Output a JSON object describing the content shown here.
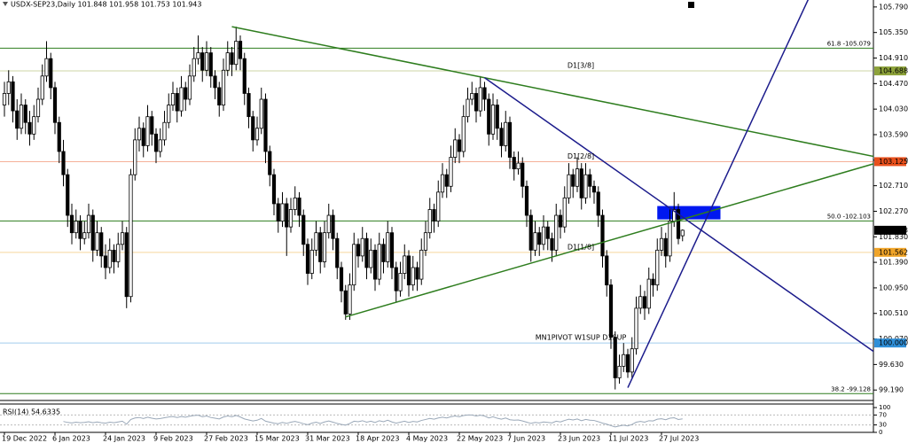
{
  "chart_data": {
    "type": "candlestick",
    "title": "USDX-SEP23,Daily  101.848 101.958 101.753 101.943",
    "categories": [
      "19 Dec 2022",
      null,
      null,
      null,
      null,
      null,
      null,
      null,
      null,
      null,
      null,
      null,
      "6 Jan 2023",
      null,
      null,
      null,
      null,
      null,
      null,
      null,
      null,
      null,
      null,
      null,
      "24 Jan 2023",
      null,
      null,
      null,
      null,
      null,
      null,
      null,
      null,
      null,
      null,
      null,
      "9 Feb 2023",
      null,
      null,
      null,
      null,
      null,
      null,
      null,
      null,
      null,
      null,
      null,
      "27 Feb 2023",
      null,
      null,
      null,
      null,
      null,
      null,
      null,
      null,
      null,
      null,
      null,
      "15 Mar 2023",
      null,
      null,
      null,
      null,
      null,
      null,
      null,
      null,
      null,
      null,
      null,
      "31 Mar 2023",
      null,
      null,
      null,
      null,
      null,
      null,
      null,
      null,
      null,
      null,
      null,
      "18 Apr 2023",
      null,
      null,
      null,
      null,
      null,
      null,
      null,
      null,
      null,
      null,
      null,
      "4 May 2023",
      null,
      null,
      null,
      null,
      null,
      null,
      null,
      null,
      null,
      null,
      null,
      "22 May 2023",
      null,
      null,
      null,
      null,
      null,
      null,
      null,
      null,
      null,
      null,
      null,
      "7 Jun 2023",
      null,
      null,
      null,
      null,
      null,
      null,
      null,
      null,
      null,
      null,
      null,
      "23 Jun 2023",
      null,
      null,
      null,
      null,
      null,
      null,
      null,
      null,
      null,
      null,
      null,
      "11 Jul 2023",
      null,
      null,
      null,
      null,
      null,
      null,
      null,
      null,
      null,
      null,
      null,
      "27 Jul 2023",
      null,
      null,
      null,
      null,
      null
    ],
    "ohlc": [
      [
        104.1,
        104.5,
        103.9,
        104.3
      ],
      [
        104.3,
        104.7,
        104.1,
        104.5
      ],
      [
        104.5,
        104.6,
        103.8,
        104.0
      ],
      [
        104.0,
        104.2,
        103.5,
        103.7
      ],
      [
        103.7,
        104.3,
        103.6,
        104.1
      ],
      [
        104.1,
        104.2,
        103.6,
        103.8
      ],
      [
        103.8,
        104.0,
        103.4,
        103.6
      ],
      [
        103.6,
        104.1,
        103.5,
        103.9
      ],
      [
        103.9,
        104.4,
        103.8,
        104.2
      ],
      [
        104.2,
        104.8,
        104.1,
        104.6
      ],
      [
        104.6,
        105.2,
        104.5,
        104.9
      ],
      [
        104.9,
        105.0,
        104.2,
        104.4
      ],
      [
        104.4,
        104.5,
        103.6,
        103.8
      ],
      [
        103.8,
        103.9,
        103.1,
        103.3
      ],
      [
        103.3,
        103.5,
        102.7,
        102.9
      ],
      [
        102.9,
        103.0,
        102.0,
        102.2
      ],
      [
        102.2,
        102.4,
        101.7,
        101.9
      ],
      [
        101.9,
        102.3,
        101.8,
        102.1
      ],
      [
        102.1,
        102.2,
        101.6,
        101.8
      ],
      [
        101.8,
        102.1,
        101.7,
        101.9
      ],
      [
        101.9,
        102.4,
        101.8,
        102.2
      ],
      [
        102.2,
        102.3,
        101.4,
        101.6
      ],
      [
        101.6,
        102.1,
        101.5,
        101.9
      ],
      [
        101.9,
        102.0,
        101.3,
        101.5
      ],
      [
        101.5,
        101.7,
        101.1,
        101.3
      ],
      [
        101.3,
        101.8,
        101.2,
        101.6
      ],
      [
        101.6,
        101.7,
        101.2,
        101.4
      ],
      [
        101.4,
        101.9,
        101.3,
        101.7
      ],
      [
        101.7,
        102.1,
        101.6,
        101.9
      ],
      [
        101.9,
        102.0,
        100.6,
        100.8
      ],
      [
        100.8,
        103.0,
        100.7,
        102.9
      ],
      [
        102.9,
        103.7,
        102.8,
        103.5
      ],
      [
        103.5,
        103.9,
        103.3,
        103.7
      ],
      [
        103.7,
        103.8,
        103.2,
        103.4
      ],
      [
        103.4,
        104.1,
        103.3,
        103.9
      ],
      [
        103.9,
        104.0,
        103.4,
        103.6
      ],
      [
        103.6,
        103.7,
        103.1,
        103.3
      ],
      [
        103.3,
        103.7,
        103.2,
        103.5
      ],
      [
        103.5,
        104.0,
        103.4,
        103.8
      ],
      [
        103.8,
        104.3,
        103.7,
        104.1
      ],
      [
        104.1,
        104.5,
        104.0,
        104.3
      ],
      [
        104.3,
        104.4,
        103.8,
        104.0
      ],
      [
        104.0,
        104.6,
        103.9,
        104.4
      ],
      [
        104.4,
        104.5,
        104.0,
        104.2
      ],
      [
        104.2,
        104.8,
        104.1,
        104.6
      ],
      [
        104.6,
        105.1,
        104.5,
        104.9
      ],
      [
        104.9,
        105.3,
        104.8,
        105.0
      ],
      [
        105.0,
        105.1,
        104.5,
        104.7
      ],
      [
        104.7,
        105.2,
        104.6,
        105.0
      ],
      [
        105.0,
        105.1,
        104.4,
        104.6
      ],
      [
        104.6,
        104.7,
        104.2,
        104.4
      ],
      [
        104.4,
        104.5,
        103.9,
        104.1
      ],
      [
        104.1,
        104.9,
        104.0,
        104.7
      ],
      [
        104.7,
        105.2,
        104.6,
        105.0
      ],
      [
        105.0,
        105.1,
        104.6,
        104.8
      ],
      [
        104.8,
        105.45,
        104.7,
        105.2
      ],
      [
        105.2,
        105.3,
        104.7,
        104.9
      ],
      [
        104.9,
        105.0,
        104.1,
        104.3
      ],
      [
        104.3,
        104.4,
        103.7,
        103.9
      ],
      [
        103.9,
        104.0,
        103.3,
        103.5
      ],
      [
        103.5,
        103.9,
        103.4,
        103.7
      ],
      [
        103.7,
        104.4,
        103.6,
        104.2
      ],
      [
        104.2,
        104.3,
        103.1,
        103.3
      ],
      [
        103.3,
        103.4,
        102.7,
        102.9
      ],
      [
        102.9,
        103.0,
        102.2,
        102.4
      ],
      [
        102.4,
        102.5,
        101.9,
        102.1
      ],
      [
        102.1,
        102.6,
        102.0,
        102.4
      ],
      [
        102.4,
        102.5,
        101.5,
        102.0
      ],
      [
        102.0,
        102.5,
        101.9,
        102.3
      ],
      [
        102.3,
        102.7,
        102.2,
        102.5
      ],
      [
        102.5,
        102.6,
        102.0,
        102.2
      ],
      [
        102.2,
        102.3,
        101.5,
        101.7
      ],
      [
        101.7,
        101.8,
        101.0,
        101.2
      ],
      [
        101.2,
        101.8,
        101.1,
        101.6
      ],
      [
        101.6,
        102.1,
        101.5,
        101.9
      ],
      [
        101.9,
        102.0,
        101.2,
        101.4
      ],
      [
        101.4,
        102.1,
        101.3,
        101.9
      ],
      [
        101.9,
        102.4,
        101.8,
        102.2
      ],
      [
        102.2,
        102.3,
        101.6,
        101.8
      ],
      [
        101.8,
        101.9,
        101.1,
        101.3
      ],
      [
        101.3,
        101.4,
        100.7,
        100.9
      ],
      [
        100.9,
        101.0,
        100.4,
        100.5
      ],
      [
        100.5,
        101.2,
        100.4,
        101.0
      ],
      [
        101.0,
        101.9,
        100.9,
        101.7
      ],
      [
        101.7,
        101.8,
        101.3,
        101.5
      ],
      [
        101.5,
        102.0,
        101.4,
        101.8
      ],
      [
        101.8,
        101.9,
        101.1,
        101.3
      ],
      [
        101.3,
        101.8,
        101.2,
        101.6
      ],
      [
        101.6,
        101.7,
        100.9,
        101.1
      ],
      [
        101.1,
        101.9,
        101.0,
        101.7
      ],
      [
        101.7,
        101.8,
        101.2,
        101.4
      ],
      [
        101.4,
        102.1,
        101.3,
        101.9
      ],
      [
        101.9,
        102.0,
        101.1,
        101.3
      ],
      [
        101.3,
        101.4,
        100.7,
        100.9
      ],
      [
        100.9,
        101.4,
        100.8,
        101.2
      ],
      [
        101.2,
        101.7,
        101.1,
        101.5
      ],
      [
        101.5,
        101.6,
        100.8,
        101.0
      ],
      [
        101.0,
        101.5,
        100.9,
        101.3
      ],
      [
        101.3,
        101.4,
        100.9,
        101.1
      ],
      [
        101.1,
        101.8,
        101.0,
        101.6
      ],
      [
        101.6,
        102.1,
        101.5,
        101.9
      ],
      [
        101.9,
        102.5,
        101.8,
        102.3
      ],
      [
        102.3,
        102.4,
        101.9,
        102.1
      ],
      [
        102.1,
        102.8,
        102.0,
        102.6
      ],
      [
        102.6,
        103.1,
        102.5,
        102.9
      ],
      [
        102.9,
        103.0,
        102.5,
        102.7
      ],
      [
        102.7,
        103.4,
        102.6,
        103.2
      ],
      [
        103.2,
        103.7,
        103.1,
        103.5
      ],
      [
        103.5,
        103.6,
        103.1,
        103.3
      ],
      [
        103.3,
        104.1,
        103.2,
        103.9
      ],
      [
        103.9,
        104.4,
        103.8,
        104.2
      ],
      [
        104.2,
        104.5,
        104.1,
        104.3
      ],
      [
        104.3,
        104.4,
        103.8,
        104.0
      ],
      [
        104.0,
        104.6,
        103.9,
        104.4
      ],
      [
        104.4,
        104.5,
        104.0,
        104.2
      ],
      [
        104.2,
        104.3,
        103.4,
        103.6
      ],
      [
        103.6,
        104.3,
        103.5,
        104.1
      ],
      [
        104.1,
        104.2,
        103.5,
        103.7
      ],
      [
        103.7,
        103.8,
        103.2,
        103.4
      ],
      [
        103.4,
        104.0,
        103.3,
        103.8
      ],
      [
        103.8,
        103.9,
        103.0,
        103.2
      ],
      [
        103.2,
        103.3,
        102.8,
        103.0
      ],
      [
        103.0,
        103.3,
        102.9,
        103.1
      ],
      [
        103.1,
        103.2,
        102.5,
        102.7
      ],
      [
        102.7,
        102.8,
        102.0,
        102.2
      ],
      [
        102.2,
        102.3,
        101.4,
        101.6
      ],
      [
        101.6,
        102.1,
        101.5,
        101.9
      ],
      [
        101.9,
        102.0,
        101.5,
        101.7
      ],
      [
        101.7,
        102.2,
        101.6,
        102.0
      ],
      [
        102.0,
        102.1,
        101.6,
        101.8
      ],
      [
        101.8,
        101.9,
        101.4,
        101.6
      ],
      [
        101.6,
        102.4,
        101.5,
        102.2
      ],
      [
        102.2,
        102.3,
        101.8,
        102.0
      ],
      [
        102.0,
        102.7,
        101.9,
        102.5
      ],
      [
        102.5,
        103.1,
        102.4,
        102.9
      ],
      [
        102.9,
        103.0,
        102.5,
        102.7
      ],
      [
        102.7,
        103.2,
        102.6,
        103.0
      ],
      [
        103.0,
        103.1,
        102.3,
        102.5
      ],
      [
        102.5,
        103.1,
        102.4,
        102.9
      ],
      [
        102.9,
        103.0,
        102.5,
        102.7
      ],
      [
        102.7,
        102.8,
        102.4,
        102.6
      ],
      [
        102.6,
        102.7,
        102.0,
        102.2
      ],
      [
        102.2,
        102.3,
        101.3,
        101.5
      ],
      [
        101.5,
        101.6,
        100.8,
        101.0
      ],
      [
        101.0,
        101.1,
        99.9,
        100.1
      ],
      [
        100.1,
        100.2,
        99.2,
        99.4
      ],
      [
        99.4,
        99.8,
        99.3,
        99.6
      ],
      [
        99.6,
        100.0,
        99.5,
        99.8
      ],
      [
        99.8,
        99.9,
        99.4,
        99.5
      ],
      [
        99.5,
        100.1,
        99.4,
        99.9
      ],
      [
        99.9,
        100.8,
        99.8,
        100.6
      ],
      [
        100.6,
        101.0,
        100.5,
        100.8
      ],
      [
        100.8,
        100.9,
        100.4,
        100.6
      ],
      [
        100.6,
        101.3,
        100.5,
        101.1
      ],
      [
        101.1,
        101.2,
        100.8,
        101.0
      ],
      [
        101.0,
        101.8,
        100.9,
        101.6
      ],
      [
        101.6,
        102.0,
        101.5,
        101.8
      ],
      [
        101.8,
        101.9,
        101.3,
        101.5
      ],
      [
        101.5,
        102.3,
        101.4,
        102.1
      ],
      [
        102.1,
        102.6,
        102.0,
        102.3
      ],
      [
        102.3,
        102.4,
        101.7,
        101.8
      ],
      [
        101.848,
        101.958,
        101.753,
        101.943
      ]
    ],
    "ylim": [
      99.01,
      105.91
    ],
    "yticks": [
      {
        "value": 105.79,
        "label": "105.790"
      },
      {
        "value": 105.35,
        "label": "105.350"
      },
      {
        "value": 104.91,
        "label": "104.910"
      },
      {
        "value": 104.47,
        "label": "104.470"
      },
      {
        "value": 104.03,
        "label": "104.030"
      },
      {
        "value": 103.59,
        "label": "103.590"
      },
      {
        "value": 103.15,
        "label": "103.150"
      },
      {
        "value": 102.71,
        "label": "102.710"
      },
      {
        "value": 102.27,
        "label": "102.270"
      },
      {
        "value": 101.83,
        "label": "101.830"
      },
      {
        "value": 101.39,
        "label": "101.390"
      },
      {
        "value": 100.95,
        "label": "100.950"
      },
      {
        "value": 100.51,
        "label": "100.510"
      },
      {
        "value": 100.07,
        "label": "100.070"
      },
      {
        "value": 99.63,
        "label": "99.630"
      },
      {
        "value": 99.19,
        "label": "99.190"
      }
    ],
    "levels": [
      {
        "value": 105.079,
        "text": "61.8 -105.079",
        "color": "#2e7d1e"
      },
      {
        "value": 104.688,
        "label": "104.688",
        "text": "D1[3/8]",
        "color": "#8da23a"
      },
      {
        "value": 103.125,
        "label": "103.125",
        "text": "D1[2/8]",
        "color": "#e8501c"
      },
      {
        "value": 102.103,
        "text": "50.0 -102.103",
        "color": "#2e7d1e"
      },
      {
        "value": 101.562,
        "label": "101.562",
        "text": "D1[1/8]",
        "color": "#f0a428"
      },
      {
        "value": 100.0,
        "label": "100.000",
        "text": "MN1PIVOT W1SUP D1SUP",
        "color": "#2f8fd8"
      },
      {
        "value": 99.128,
        "text": "38.2 -99.128",
        "color": "#2e7d1e"
      }
    ],
    "trendlines": [
      {
        "from": [
          54,
          105.45
        ],
        "to": [
          114,
          104.57
        ],
        "color": "#2e7d1e"
      },
      {
        "from": [
          81,
          100.45
        ],
        "to": [
          158,
          102.07
        ],
        "color": "#2e7d1e"
      },
      {
        "from": [
          114,
          104.57
        ],
        "to": [
          161,
          102.17
        ],
        "color": "#1c1c8c"
      },
      {
        "from": [
          148,
          99.23
        ],
        "to": [
          161,
          101.26
        ],
        "color": "#1c1c8c"
      }
    ],
    "rectangle": {
      "from": [
        155,
        102.36
      ],
      "to": [
        170,
        102.13
      ],
      "color": "#0018f0"
    },
    "rsi_title": "RSI(14) 54.6335",
    "rsi_color": "#9aa8b8",
    "rsi_ylim": [
      0,
      100
    ],
    "rsi_yticks": [
      100,
      70,
      30,
      0
    ],
    "rsi": [
      null,
      null,
      null,
      null,
      null,
      null,
      null,
      null,
      null,
      null,
      null,
      null,
      null,
      null,
      44,
      40,
      38,
      41,
      39,
      40,
      43,
      39,
      42,
      39,
      37,
      41,
      39,
      42,
      45,
      33,
      52,
      58,
      60,
      56,
      61,
      57,
      54,
      56,
      59,
      62,
      64,
      60,
      64,
      61,
      65,
      68,
      69,
      63,
      66,
      60,
      57,
      54,
      62,
      66,
      63,
      68,
      62,
      54,
      50,
      46,
      49,
      56,
      45,
      41,
      37,
      35,
      40,
      36,
      41,
      44,
      40,
      35,
      31,
      37,
      41,
      36,
      42,
      46,
      41,
      36,
      32,
      29,
      36,
      45,
      43,
      47,
      41,
      45,
      40,
      47,
      43,
      49,
      42,
      37,
      41,
      45,
      40,
      44,
      42,
      48,
      52,
      56,
      53,
      58,
      61,
      58,
      63,
      66,
      63,
      68,
      70,
      70,
      66,
      69,
      66,
      58,
      63,
      57,
      53,
      58,
      51,
      49,
      50,
      46,
      41,
      36,
      40,
      38,
      42,
      40,
      38,
      45,
      42,
      48,
      53,
      50,
      54,
      47,
      52,
      49,
      48,
      43,
      37,
      33,
      27,
      22,
      26,
      29,
      26,
      32,
      41,
      44,
      41,
      47,
      46,
      53,
      55,
      51,
      57,
      59,
      52,
      54.6335
    ]
  }
}
